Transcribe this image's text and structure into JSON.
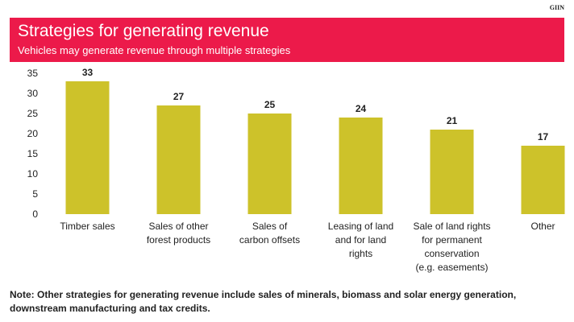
{
  "source_label": "GIIN",
  "header": {
    "title": "Strategies for generating revenue",
    "subtitle": "Vehicles may generate revenue through multiple strategies"
  },
  "note": "Note: Other strategies for generating revenue include sales of minerals, biomass and solar energy generation, downstream manufacturing and tax credits.",
  "colors": {
    "banner": "#ec1a4a",
    "bar": "#cdc22a",
    "text": "#222222"
  },
  "chart_data": {
    "type": "bar",
    "title": "Strategies for generating revenue",
    "subtitle": "Vehicles may generate revenue through multiple strategies",
    "categories": [
      [
        "Timber sales"
      ],
      [
        "Sales of other",
        "forest products"
      ],
      [
        "Sales of",
        "carbon offsets"
      ],
      [
        "Leasing of land",
        "and for land",
        "rights"
      ],
      [
        "Sale of land rights",
        "for permanent",
        "conservation",
        "(e.g. easements)"
      ],
      [
        "Other"
      ]
    ],
    "values": [
      33,
      27,
      25,
      24,
      21,
      17
    ],
    "ylim": [
      0,
      35
    ],
    "yticks": [
      0,
      5,
      10,
      15,
      20,
      25,
      30,
      35
    ],
    "grid": false,
    "xlabel": "",
    "ylabel": ""
  }
}
